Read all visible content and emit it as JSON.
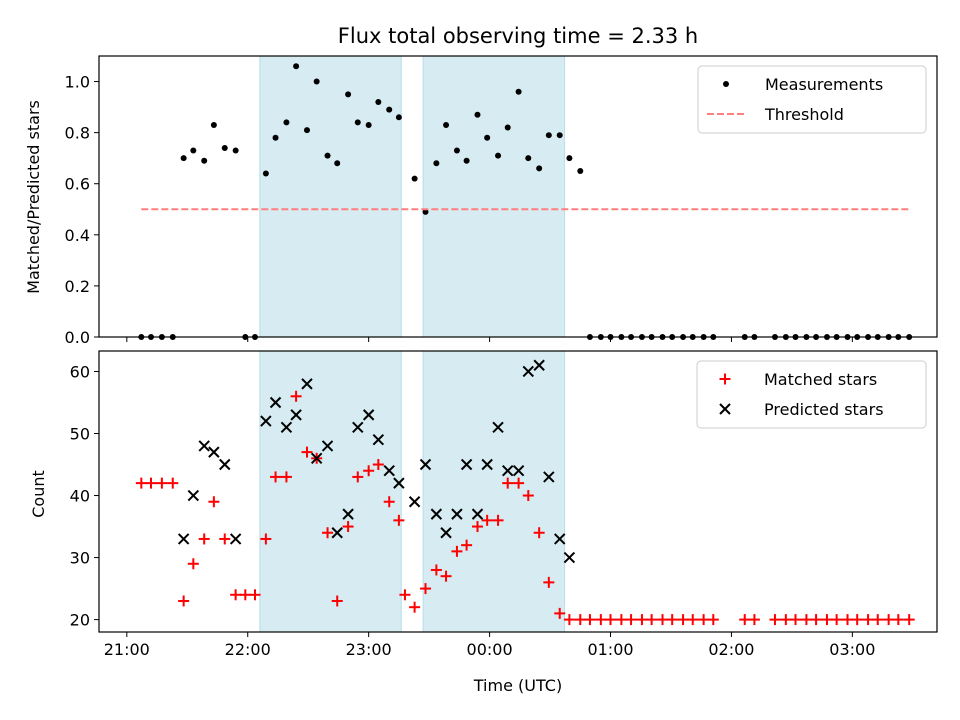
{
  "chart_data": [
    {
      "type": "scatter",
      "title": "Flux total observing time = 2.33 h",
      "xlabel": "",
      "ylabel": "Matched/Predicted stars",
      "ylim": [
        0,
        1.1
      ],
      "yticks": [
        0.0,
        0.2,
        0.4,
        0.6,
        0.8,
        1.0
      ],
      "ytick_labels": [
        "0.0",
        "0.2",
        "0.4",
        "0.6",
        "0.8",
        "1.0"
      ],
      "legend_position": "top-right",
      "shaded_intervals_hours": [
        [
          22.1,
          23.27
        ],
        [
          23.45,
          24.62
        ]
      ],
      "series": [
        {
          "name": "Measurements",
          "color": "#000000",
          "marker": "dot",
          "x": [
            21.12,
            21.2,
            21.29,
            21.38,
            21.47,
            21.55,
            21.64,
            21.72,
            21.81,
            21.9,
            21.98,
            22.06,
            22.15,
            22.23,
            22.32,
            22.4,
            22.49,
            22.57,
            22.66,
            22.74,
            22.83,
            22.91,
            23.0,
            23.08,
            23.17,
            23.25,
            23.38,
            23.47,
            23.56,
            23.64,
            23.73,
            23.81,
            23.9,
            23.98,
            24.07,
            24.15,
            24.24,
            24.32,
            24.41,
            24.49,
            24.58,
            24.66,
            24.75,
            24.83,
            24.92,
            25.0,
            25.09,
            25.17,
            25.26,
            25.34,
            25.43,
            25.51,
            25.6,
            25.68,
            25.77,
            25.85,
            26.11,
            26.19,
            26.36,
            26.45,
            26.53,
            26.62,
            26.7,
            26.79,
            26.87,
            26.96,
            27.04,
            27.13,
            27.21,
            27.3,
            27.38,
            27.47
          ],
          "y": [
            0,
            0,
            0,
            0,
            0.7,
            0.73,
            0.69,
            0.83,
            0.74,
            0.73,
            0,
            0,
            0.64,
            0.78,
            0.84,
            1.06,
            0.81,
            1.0,
            0.71,
            0.68,
            0.95,
            0.84,
            0.83,
            0.92,
            0.89,
            0.86,
            0.62,
            0.49,
            0.68,
            0.83,
            0.73,
            0.69,
            0.87,
            0.78,
            0.71,
            0.82,
            0.96,
            0.7,
            0.66,
            0.79,
            0.79,
            0.7,
            0.65,
            0,
            0,
            0,
            0,
            0,
            0,
            0,
            0,
            0,
            0,
            0,
            0,
            0,
            0,
            0,
            0,
            0,
            0,
            0,
            0,
            0,
            0,
            0,
            0,
            0,
            0,
            0,
            0,
            0
          ]
        },
        {
          "name": "Threshold",
          "color": "#ff7f7f",
          "style": "dashed",
          "x": [
            21.12,
            27.47
          ],
          "y": [
            0.5,
            0.5
          ]
        }
      ]
    },
    {
      "type": "scatter",
      "title": "",
      "xlabel": "Time (UTC)",
      "ylabel": "Count",
      "ylim": [
        18,
        63.3
      ],
      "yticks": [
        20,
        30,
        40,
        50,
        60
      ],
      "ytick_labels": [
        "20",
        "30",
        "40",
        "50",
        "60"
      ],
      "xlim_hours": [
        20.77,
        27.7
      ],
      "xticks_hours": [
        21,
        22,
        23,
        24,
        25,
        26,
        27
      ],
      "xtick_labels": [
        "21:00",
        "22:00",
        "23:00",
        "00:00",
        "01:00",
        "02:00",
        "03:00"
      ],
      "legend_position": "top-right",
      "shaded_intervals_hours": [
        [
          22.1,
          23.27
        ],
        [
          23.45,
          24.62
        ]
      ],
      "series": [
        {
          "name": "Matched stars",
          "color": "#ff0000",
          "marker": "plus",
          "x": [
            21.12,
            21.2,
            21.29,
            21.38,
            21.47,
            21.55,
            21.64,
            21.72,
            21.81,
            21.9,
            21.98,
            22.06,
            22.15,
            22.23,
            22.32,
            22.4,
            22.49,
            22.57,
            22.66,
            22.74,
            22.83,
            22.91,
            23.0,
            23.08,
            23.17,
            23.25,
            23.3,
            23.38,
            23.47,
            23.56,
            23.64,
            23.73,
            23.81,
            23.9,
            23.98,
            24.07,
            24.15,
            24.24,
            24.32,
            24.41,
            24.49,
            24.58,
            24.66,
            24.75,
            24.83,
            24.92,
            25.0,
            25.09,
            25.17,
            25.26,
            25.34,
            25.43,
            25.51,
            25.6,
            25.68,
            25.77,
            25.85,
            26.11,
            26.19,
            26.36,
            26.45,
            26.53,
            26.62,
            26.7,
            26.79,
            26.87,
            26.96,
            27.04,
            27.13,
            27.21,
            27.3,
            27.38,
            27.47
          ],
          "y": [
            42,
            42,
            42,
            42,
            23,
            29,
            33,
            39,
            33,
            24,
            24,
            24,
            33,
            43,
            43,
            56,
            47,
            46,
            34,
            23,
            35,
            43,
            44,
            45,
            39,
            36,
            24,
            22,
            25,
            28,
            27,
            31,
            32,
            35,
            36,
            36,
            42,
            42,
            40,
            34,
            26,
            21,
            20,
            20,
            20,
            20,
            20,
            20,
            20,
            20,
            20,
            20,
            20,
            20,
            20,
            20,
            20,
            20,
            20,
            20,
            20,
            20,
            20,
            20,
            20,
            20,
            20,
            20,
            20,
            20,
            20,
            20,
            20
          ]
        },
        {
          "name": "Predicted stars",
          "color": "#000000",
          "marker": "x",
          "x": [
            21.47,
            21.55,
            21.64,
            21.72,
            21.81,
            21.9,
            22.15,
            22.23,
            22.32,
            22.4,
            22.49,
            22.57,
            22.66,
            22.74,
            22.83,
            22.91,
            23.0,
            23.08,
            23.17,
            23.25,
            23.38,
            23.47,
            23.56,
            23.64,
            23.73,
            23.81,
            23.9,
            23.98,
            24.07,
            24.15,
            24.24,
            24.32,
            24.41,
            24.49,
            24.58,
            24.66
          ],
          "y": [
            33,
            40,
            48,
            47,
            45,
            33,
            52,
            55,
            51,
            53,
            58,
            46,
            48,
            34,
            37,
            51,
            53,
            49,
            44,
            42,
            39,
            45,
            37,
            34,
            37,
            45,
            37,
            45,
            51,
            44,
            44,
            60,
            61,
            43,
            33,
            30
          ]
        }
      ]
    }
  ]
}
